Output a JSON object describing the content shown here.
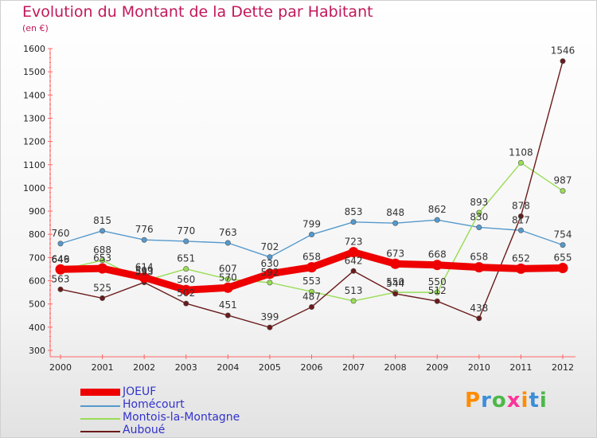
{
  "header": {
    "title": "Evolution du Montant de la Dette par Habitant",
    "unit": "(en €)"
  },
  "brand": {
    "text": "Proxiti",
    "letter_colors": [
      "#ff8c00",
      "#3b8ed8",
      "#4cb848",
      "#ff3399",
      "#ff8c00",
      "#3b8ed8",
      "#4cb848"
    ]
  },
  "chart_data": {
    "type": "line",
    "title": "Evolution du Montant de la Dette par Habitant",
    "subtitle": "(en €)",
    "xlabel": "",
    "ylabel": "",
    "categories": [
      "2000",
      "2001",
      "2002",
      "2003",
      "2004",
      "2005",
      "2006",
      "2007",
      "2008",
      "2009",
      "2010",
      "2011",
      "2012"
    ],
    "ylim": [
      300,
      1600
    ],
    "yticks": [
      300,
      400,
      500,
      600,
      700,
      800,
      900,
      1000,
      1100,
      1200,
      1300,
      1400,
      1500,
      1600
    ],
    "grid": false,
    "legend_position": "bottom-left",
    "series": [
      {
        "name": "Homécourt",
        "color": "#5599cc",
        "values": [
          760,
          815,
          776,
          770,
          763,
          702,
          799,
          853,
          848,
          862,
          830,
          817,
          754
        ]
      },
      {
        "name": "Montois-la-Montagne",
        "color": "#99dd55",
        "values": [
          646,
          688,
          599,
          651,
          607,
          592,
          553,
          513,
          550,
          550,
          893,
          1108,
          987
        ]
      },
      {
        "name": "Auboué",
        "color": "#6b1a1a",
        "values": [
          563,
          525,
          593,
          502,
          451,
          399,
          487,
          642,
          544,
          512,
          438,
          878,
          1546
        ]
      },
      {
        "name": "JOEUF",
        "color": "#ee0000",
        "values": [
          649,
          653,
          614,
          560,
          570,
          630,
          658,
          723,
          673,
          668,
          658,
          652,
          655
        ]
      }
    ]
  }
}
